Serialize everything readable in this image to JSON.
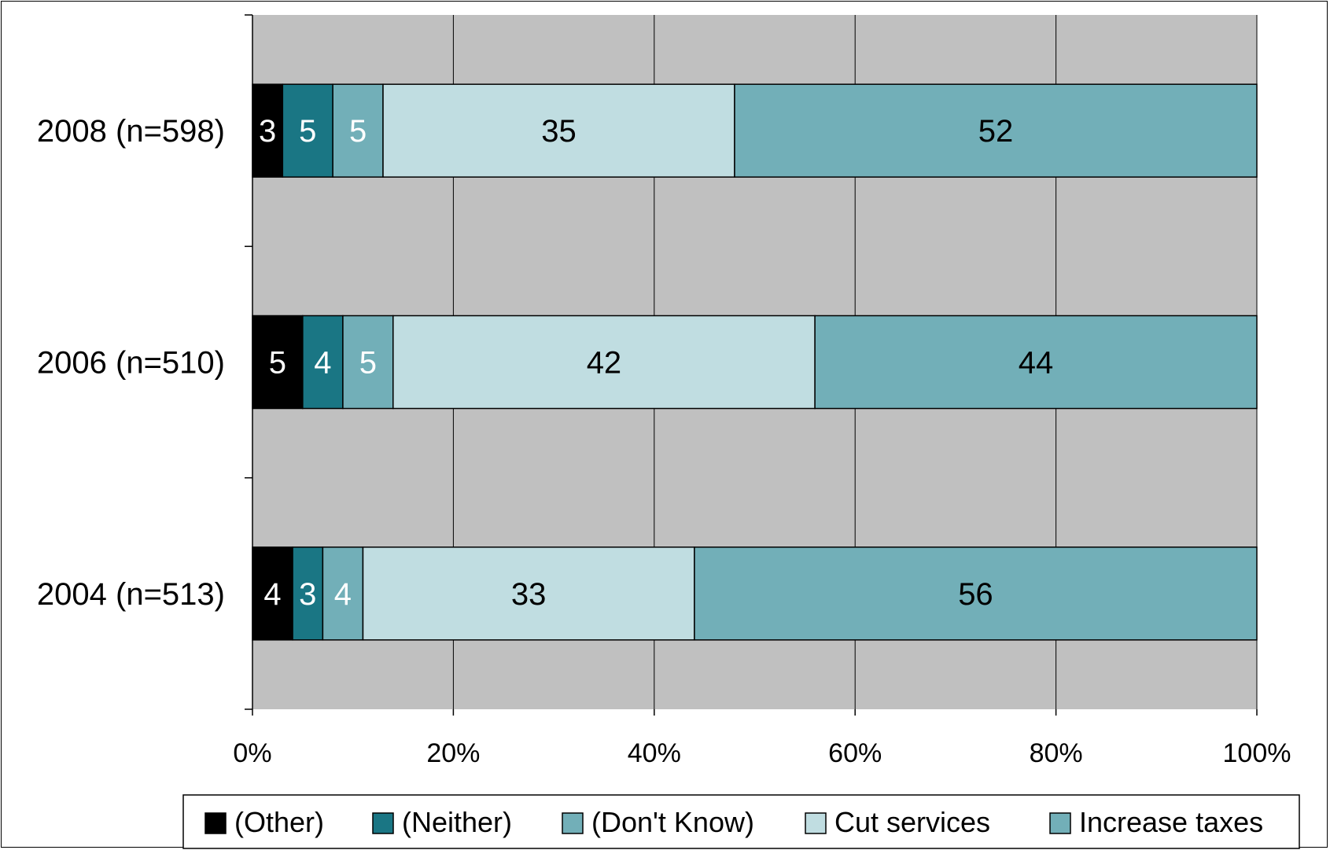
{
  "chart_data": {
    "type": "bar",
    "orientation": "horizontal",
    "stacked": true,
    "normalized": true,
    "categories": [
      "2008 (n=598)",
      "2006 (n=510)",
      "2004 (n=513)"
    ],
    "series": [
      {
        "name": "(Other)",
        "values": [
          3,
          5,
          4
        ],
        "color": "#000000",
        "label_color": "#ffffff"
      },
      {
        "name": "(Neither)",
        "values": [
          5,
          4,
          3
        ],
        "color": "#1a7684",
        "label_color": "#ffffff"
      },
      {
        "name": "(Don't Know)",
        "values": [
          5,
          5,
          4
        ],
        "color": "#72afb8",
        "label_color": "#ffffff"
      },
      {
        "name": "Cut services",
        "values": [
          35,
          42,
          33
        ],
        "color": "#c0dde1",
        "label_color": "#000000"
      },
      {
        "name": "Increase taxes",
        "values": [
          52,
          44,
          56
        ],
        "color": "#72afb8",
        "label_color": "#000000"
      }
    ],
    "x_ticks": [
      "0%",
      "20%",
      "40%",
      "60%",
      "80%",
      "100%"
    ],
    "xlim": [
      0,
      100
    ],
    "grid": true,
    "plot_background": "#c0c0c0",
    "legend_position": "bottom"
  }
}
